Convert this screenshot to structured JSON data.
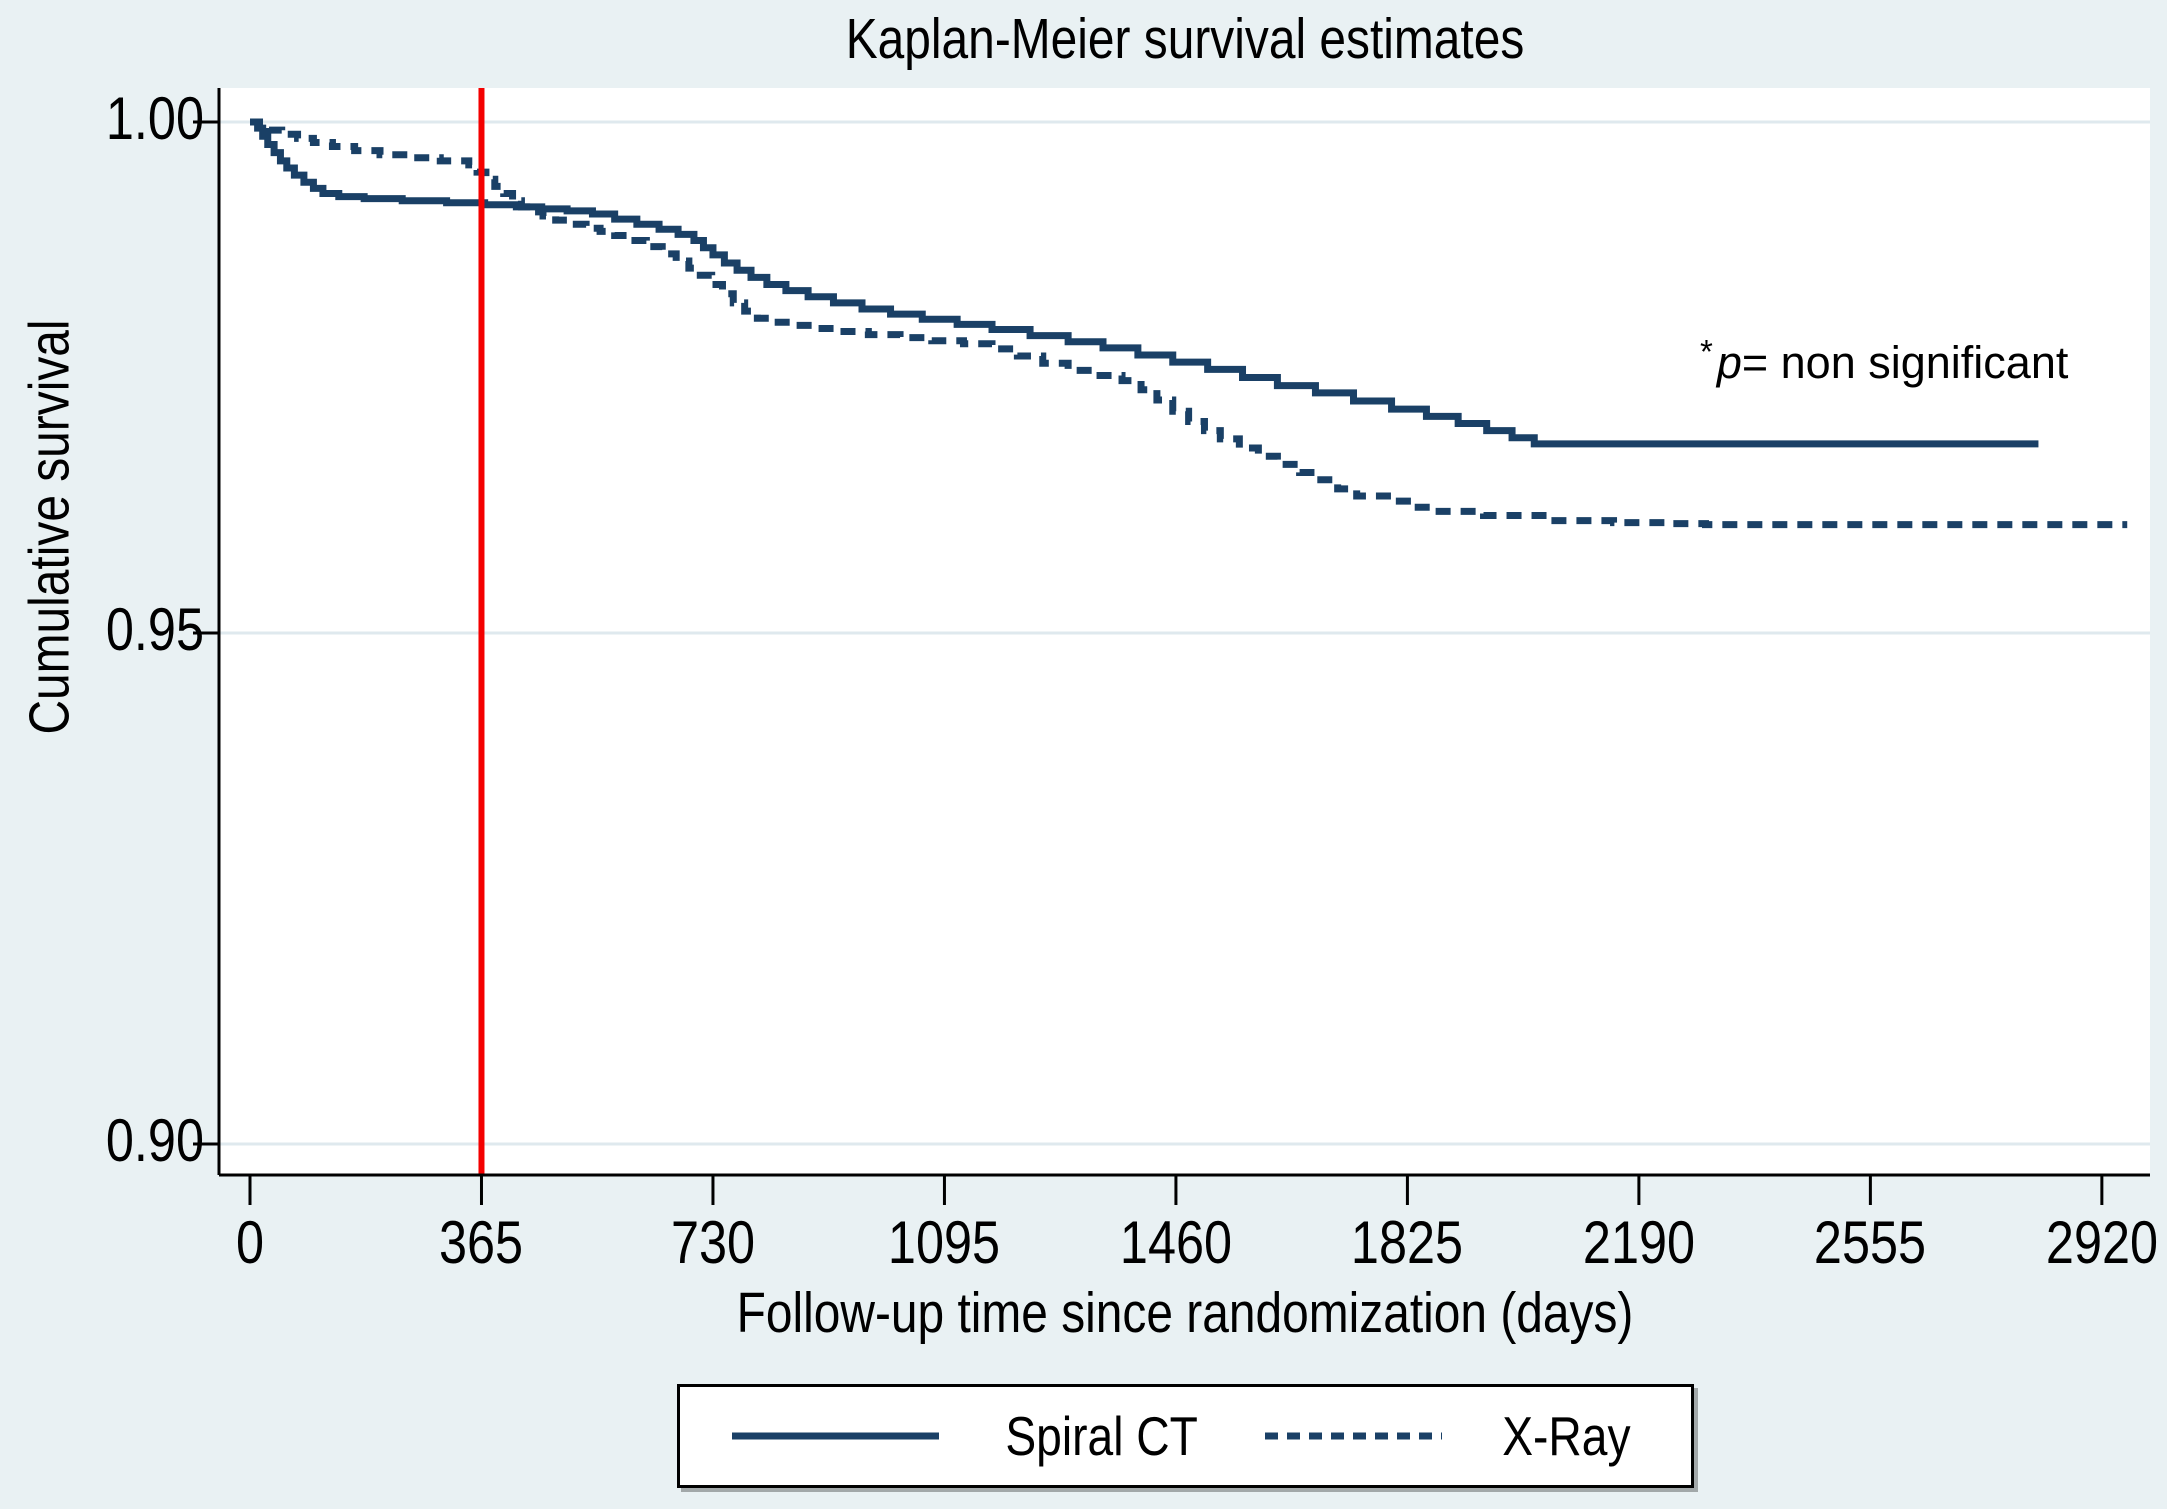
{
  "title": "Kaplan-Meier survival estimates",
  "annotation": {
    "asterisk": "*",
    "p_text": "p",
    "rest": "= non significant"
  },
  "axes": {
    "x": {
      "label": "Follow-up time since randomization (days)",
      "ticks": [
        0,
        365,
        730,
        1095,
        1460,
        1825,
        2190,
        2555,
        2920
      ]
    },
    "y": {
      "label": "Cumulative survival",
      "ticks": [
        {
          "value": 1.0,
          "label": "1.00"
        },
        {
          "value": 0.95,
          "label": "0.95"
        },
        {
          "value": 0.9,
          "label": "0.90"
        }
      ]
    }
  },
  "legend": {
    "items": [
      {
        "label": "Spiral CT",
        "style": "solid"
      },
      {
        "label": "X-Ray",
        "style": "dashed"
      }
    ]
  },
  "colors": {
    "line_navy": "#1a4066",
    "reference_red": "#f40000",
    "grid": "#dfe9ee",
    "background": "#e9f1f3",
    "plot_background": "#ffffff",
    "axis": "#000000"
  },
  "chart_data": {
    "type": "line",
    "subtype": "kaplan-meier-step",
    "title": "Kaplan-Meier survival estimates",
    "xlabel": "Follow-up time since randomization (days)",
    "ylabel": "Cumulative survival",
    "xlim": [
      -55,
      2995
    ],
    "ylim": [
      0.897,
      1.003
    ],
    "x_ticks": [
      0,
      365,
      730,
      1095,
      1460,
      1825,
      2190,
      2555,
      2920
    ],
    "y_ticks": [
      1.0,
      0.95,
      0.9
    ],
    "grid": "horizontal",
    "legend_position": "bottom",
    "reference_vline_x": 365,
    "annotation_text": "*p= non significant",
    "series": [
      {
        "name": "Spiral CT",
        "line_style": "solid",
        "end_day": 2820,
        "points": [
          [
            0,
            1.0
          ],
          [
            12,
            0.9994
          ],
          [
            20,
            0.9986
          ],
          [
            28,
            0.9978
          ],
          [
            38,
            0.997
          ],
          [
            48,
            0.9962
          ],
          [
            58,
            0.9955
          ],
          [
            70,
            0.9948
          ],
          [
            85,
            0.9941
          ],
          [
            100,
            0.9935
          ],
          [
            115,
            0.993
          ],
          [
            140,
            0.9927
          ],
          [
            180,
            0.9925
          ],
          [
            240,
            0.9923
          ],
          [
            310,
            0.9921
          ],
          [
            370,
            0.9919
          ],
          [
            420,
            0.9917
          ],
          [
            460,
            0.9915
          ],
          [
            500,
            0.9913
          ],
          [
            540,
            0.991
          ],
          [
            575,
            0.9905
          ],
          [
            610,
            0.99
          ],
          [
            645,
            0.9895
          ],
          [
            675,
            0.989
          ],
          [
            700,
            0.9884
          ],
          [
            715,
            0.9877
          ],
          [
            730,
            0.987
          ],
          [
            748,
            0.9862
          ],
          [
            768,
            0.9855
          ],
          [
            790,
            0.9848
          ],
          [
            815,
            0.9841
          ],
          [
            845,
            0.9835
          ],
          [
            880,
            0.9829
          ],
          [
            920,
            0.9823
          ],
          [
            965,
            0.9817
          ],
          [
            1010,
            0.9812
          ],
          [
            1060,
            0.9807
          ],
          [
            1115,
            0.9802
          ],
          [
            1170,
            0.9797
          ],
          [
            1230,
            0.9791
          ],
          [
            1290,
            0.9785
          ],
          [
            1345,
            0.9779
          ],
          [
            1400,
            0.9772
          ],
          [
            1455,
            0.9765
          ],
          [
            1510,
            0.9758
          ],
          [
            1565,
            0.975
          ],
          [
            1620,
            0.9742
          ],
          [
            1680,
            0.9735
          ],
          [
            1740,
            0.9727
          ],
          [
            1800,
            0.9719
          ],
          [
            1855,
            0.9712
          ],
          [
            1905,
            0.9705
          ],
          [
            1950,
            0.9698
          ],
          [
            1990,
            0.9691
          ],
          [
            2025,
            0.9685
          ]
        ]
      },
      {
        "name": "X-Ray",
        "line_style": "dashed",
        "end_day": 2960,
        "points": [
          [
            0,
            1.0
          ],
          [
            15,
            0.9996
          ],
          [
            30,
            0.9992
          ],
          [
            50,
            0.9988
          ],
          [
            75,
            0.9984
          ],
          [
            100,
            0.998
          ],
          [
            130,
            0.9976
          ],
          [
            165,
            0.9972
          ],
          [
            205,
            0.9968
          ],
          [
            250,
            0.9965
          ],
          [
            300,
            0.9962
          ],
          [
            345,
            0.9958
          ],
          [
            358,
            0.9951
          ],
          [
            372,
            0.9944
          ],
          [
            386,
            0.9937
          ],
          [
            400,
            0.993
          ],
          [
            414,
            0.9923
          ],
          [
            428,
            0.9917
          ],
          [
            444,
            0.9912
          ],
          [
            462,
            0.9908
          ],
          [
            482,
            0.9904
          ],
          [
            505,
            0.99
          ],
          [
            530,
            0.9896
          ],
          [
            552,
            0.9893
          ],
          [
            575,
            0.9889
          ],
          [
            600,
            0.9884
          ],
          [
            625,
            0.9878
          ],
          [
            650,
            0.9871
          ],
          [
            672,
            0.9864
          ],
          [
            692,
            0.9857
          ],
          [
            710,
            0.985
          ],
          [
            728,
            0.9841
          ],
          [
            745,
            0.9832
          ],
          [
            762,
            0.9823
          ],
          [
            780,
            0.9815
          ],
          [
            800,
            0.9808
          ],
          [
            825,
            0.9804
          ],
          [
            855,
            0.9801
          ],
          [
            890,
            0.9798
          ],
          [
            930,
            0.9795
          ],
          [
            975,
            0.9792
          ],
          [
            1025,
            0.9789
          ],
          [
            1075,
            0.9786
          ],
          [
            1125,
            0.9783
          ],
          [
            1170,
            0.9778
          ],
          [
            1210,
            0.9771
          ],
          [
            1250,
            0.9764
          ],
          [
            1290,
            0.9757
          ],
          [
            1330,
            0.9752
          ],
          [
            1375,
            0.9747
          ],
          [
            1405,
            0.9738
          ],
          [
            1430,
            0.9728
          ],
          [
            1455,
            0.9717
          ],
          [
            1480,
            0.9707
          ],
          [
            1505,
            0.9698
          ],
          [
            1530,
            0.969
          ],
          [
            1560,
            0.9681
          ],
          [
            1590,
            0.9673
          ],
          [
            1620,
            0.9665
          ],
          [
            1655,
            0.9657
          ],
          [
            1680,
            0.965
          ],
          [
            1715,
            0.9641
          ],
          [
            1745,
            0.9634
          ],
          [
            1800,
            0.9629
          ],
          [
            1825,
            0.9623
          ],
          [
            1875,
            0.9619
          ],
          [
            1945,
            0.9615
          ],
          [
            2045,
            0.961
          ],
          [
            2150,
            0.9608
          ],
          [
            2240,
            0.9607
          ],
          [
            2295,
            0.9606
          ]
        ]
      }
    ]
  }
}
